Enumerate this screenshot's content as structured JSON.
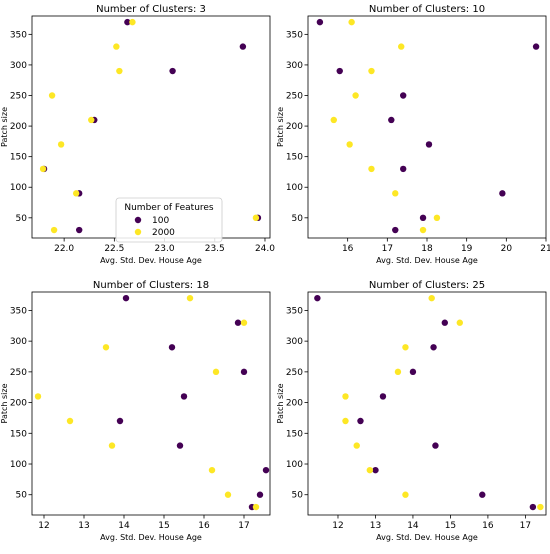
{
  "figure": {
    "colors": {
      "c100": "#440154",
      "c2000": "#fde725"
    }
  },
  "legend": {
    "title": "Number of Features",
    "entries": [
      "100",
      "2000"
    ]
  },
  "chart_data": [
    {
      "type": "scatter",
      "title": "Number of Clusters: 3",
      "xlabel": "Avg. Std. Dev. House Age",
      "ylabel": "Patch size",
      "xlim": [
        21.68,
        24.05
      ],
      "ylim": [
        17,
        380
      ],
      "xticks": [
        22.0,
        22.5,
        23.0,
        23.5,
        24.0
      ],
      "xtick_labels": [
        "22.0",
        "22.5",
        "23.0",
        "23.5",
        "24.0"
      ],
      "yticks": [
        50,
        100,
        150,
        200,
        250,
        300,
        350
      ],
      "series": [
        {
          "name": "100",
          "points": [
            [
              22.63,
              370
            ],
            [
              23.78,
              330
            ],
            [
              23.08,
              290
            ],
            [
              22.3,
              210
            ],
            [
              21.8,
              130
            ],
            [
              22.15,
              90
            ],
            [
              23.93,
              50
            ],
            [
              22.15,
              30
            ]
          ]
        },
        {
          "name": "2000",
          "points": [
            [
              22.68,
              370
            ],
            [
              22.52,
              330
            ],
            [
              22.55,
              290
            ],
            [
              21.88,
              250
            ],
            [
              22.27,
              210
            ],
            [
              21.97,
              170
            ],
            [
              21.79,
              130
            ],
            [
              22.12,
              90
            ],
            [
              23.91,
              50
            ],
            [
              21.9,
              30
            ]
          ]
        }
      ]
    },
    {
      "type": "scatter",
      "title": "Number of Clusters: 10",
      "xlabel": "Avg. Std. Dev. House Age",
      "ylabel": "Patch size",
      "xlim": [
        15.0,
        21.0
      ],
      "ylim": [
        17,
        380
      ],
      "xticks": [
        16,
        17,
        18,
        19,
        20,
        21
      ],
      "xtick_labels": [
        "16",
        "17",
        "18",
        "19",
        "20",
        "21"
      ],
      "yticks": [
        50,
        100,
        150,
        200,
        250,
        300,
        350
      ],
      "series": [
        {
          "name": "100",
          "points": [
            [
              15.3,
              370
            ],
            [
              20.75,
              330
            ],
            [
              15.8,
              290
            ],
            [
              17.4,
              250
            ],
            [
              17.1,
              210
            ],
            [
              18.05,
              170
            ],
            [
              17.4,
              130
            ],
            [
              19.9,
              90
            ],
            [
              17.9,
              50
            ],
            [
              17.2,
              30
            ]
          ]
        },
        {
          "name": "2000",
          "points": [
            [
              16.1,
              370
            ],
            [
              17.35,
              330
            ],
            [
              16.6,
              290
            ],
            [
              16.2,
              250
            ],
            [
              15.65,
              210
            ],
            [
              16.05,
              170
            ],
            [
              16.6,
              130
            ],
            [
              17.2,
              90
            ],
            [
              18.25,
              50
            ],
            [
              17.9,
              30
            ]
          ]
        }
      ]
    },
    {
      "type": "scatter",
      "title": "Number of Clusters: 18",
      "xlabel": "Avg. Std. Dev. House Age",
      "ylabel": "Patch size",
      "xlim": [
        11.7,
        17.65
      ],
      "ylim": [
        17,
        380
      ],
      "xticks": [
        12,
        13,
        14,
        15,
        16,
        17
      ],
      "xtick_labels": [
        "12",
        "13",
        "14",
        "15",
        "16",
        "17"
      ],
      "yticks": [
        50,
        100,
        150,
        200,
        250,
        300,
        350
      ],
      "series": [
        {
          "name": "100",
          "points": [
            [
              14.05,
              370
            ],
            [
              16.85,
              330
            ],
            [
              15.2,
              290
            ],
            [
              17.0,
              250
            ],
            [
              15.5,
              210
            ],
            [
              13.9,
              170
            ],
            [
              15.4,
              130
            ],
            [
              17.55,
              90
            ],
            [
              17.4,
              50
            ],
            [
              17.2,
              30
            ]
          ]
        },
        {
          "name": "2000",
          "points": [
            [
              15.65,
              370
            ],
            [
              17.0,
              330
            ],
            [
              13.55,
              290
            ],
            [
              16.3,
              250
            ],
            [
              11.85,
              210
            ],
            [
              12.65,
              170
            ],
            [
              13.7,
              130
            ],
            [
              16.2,
              90
            ],
            [
              16.6,
              50
            ],
            [
              17.3,
              30
            ]
          ]
        }
      ]
    },
    {
      "type": "scatter",
      "title": "Number of Clusters: 25",
      "xlabel": "Avg. Std. Dev. House Age",
      "ylabel": "Patch size",
      "xlim": [
        11.2,
        17.55
      ],
      "ylim": [
        17,
        380
      ],
      "xticks": [
        12,
        13,
        14,
        15,
        16,
        17
      ],
      "xtick_labels": [
        "12",
        "13",
        "14",
        "15",
        "16",
        "17"
      ],
      "yticks": [
        50,
        100,
        150,
        200,
        250,
        300,
        350
      ],
      "series": [
        {
          "name": "100",
          "points": [
            [
              11.45,
              370
            ],
            [
              14.85,
              330
            ],
            [
              14.55,
              290
            ],
            [
              14.0,
              250
            ],
            [
              13.2,
              210
            ],
            [
              12.6,
              170
            ],
            [
              14.6,
              130
            ],
            [
              13.0,
              90
            ],
            [
              15.85,
              50
            ],
            [
              17.2,
              30
            ]
          ]
        },
        {
          "name": "2000",
          "points": [
            [
              14.5,
              370
            ],
            [
              15.25,
              330
            ],
            [
              13.8,
              290
            ],
            [
              13.6,
              250
            ],
            [
              12.2,
              210
            ],
            [
              12.2,
              170
            ],
            [
              12.5,
              130
            ],
            [
              12.85,
              90
            ],
            [
              13.8,
              50
            ],
            [
              17.4,
              30
            ]
          ]
        }
      ]
    }
  ]
}
